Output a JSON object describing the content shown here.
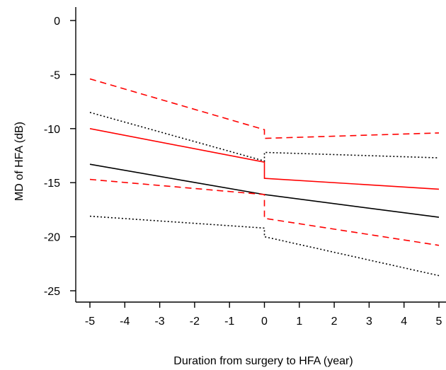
{
  "chart_data": {
    "type": "line",
    "title": "",
    "xlabel": "Duration from surgery to HFA (year)",
    "ylabel": "MD of HFA (dB)",
    "xlim": [
      -5,
      5
    ],
    "ylim": [
      -25,
      0
    ],
    "x_ticks": [
      -5,
      -4,
      -3,
      -2,
      -1,
      0,
      1,
      2,
      3,
      4,
      5
    ],
    "y_ticks": [
      0,
      -5,
      -10,
      -15,
      -20,
      -25
    ],
    "x_tick_labels": [
      "-5",
      "-4",
      "-3",
      "-2",
      "-1",
      "0",
      "1",
      "2",
      "3",
      "4",
      "5"
    ],
    "y_tick_labels": [
      "0",
      "-5",
      "-10",
      "-15",
      "-20",
      "-25"
    ],
    "grid": false,
    "legend": "none",
    "series": [
      {
        "color": "#000000",
        "style": "solid",
        "segments": [
          {
            "x": [
              -5,
              0
            ],
            "y": [
              -13.3,
              -16.1
            ]
          },
          {
            "x": [
              0,
              5
            ],
            "y": [
              -16.1,
              -18.2
            ]
          }
        ]
      },
      {
        "color": "#000000",
        "style": "dotted",
        "segments": [
          {
            "x": [
              -5,
              0
            ],
            "y": [
              -8.5,
              -13.0
            ]
          },
          {
            "x": [
              0,
              5
            ],
            "y": [
              -12.2,
              -12.7
            ]
          }
        ]
      },
      {
        "color": "#000000",
        "style": "dotted",
        "segments": [
          {
            "x": [
              -5,
              0
            ],
            "y": [
              -18.1,
              -19.2
            ]
          },
          {
            "x": [
              0,
              5
            ],
            "y": [
              -20.0,
              -23.6
            ]
          }
        ]
      },
      {
        "color": "#ff0000",
        "style": "solid",
        "segments": [
          {
            "x": [
              -5,
              0
            ],
            "y": [
              -10.0,
              -13.1
            ]
          },
          {
            "x": [
              0,
              5
            ],
            "y": [
              -14.6,
              -15.6
            ]
          }
        ]
      },
      {
        "color": "#ff0000",
        "style": "dashed",
        "segments": [
          {
            "x": [
              -5,
              0
            ],
            "y": [
              -5.4,
              -10.1
            ]
          },
          {
            "x": [
              0,
              5
            ],
            "y": [
              -10.9,
              -10.4
            ]
          }
        ]
      },
      {
        "color": "#ff0000",
        "style": "dashed",
        "segments": [
          {
            "x": [
              -5,
              0
            ],
            "y": [
              -14.7,
              -16.1
            ]
          },
          {
            "x": [
              0,
              5
            ],
            "y": [
              -18.3,
              -20.8
            ]
          }
        ]
      }
    ]
  }
}
